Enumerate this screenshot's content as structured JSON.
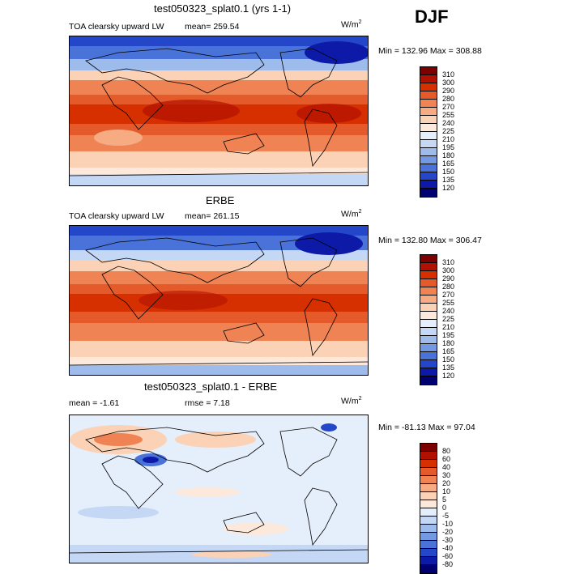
{
  "season": "DJF",
  "colors": {
    "abs_scale": [
      "#7d0000",
      "#b21000",
      "#d73000",
      "#e55a2b",
      "#ef8353",
      "#f6ab82",
      "#fbd2b6",
      "#fde9dc",
      "#e5eefb",
      "#c4d7f4",
      "#9dbcec",
      "#7399e2",
      "#4a73da",
      "#2447c9",
      "#0d1aa8",
      "#000070"
    ],
    "diff_scale": [
      "#7d0000",
      "#b21000",
      "#d73000",
      "#e55a2b",
      "#ef8353",
      "#f6ab82",
      "#fbd2b6",
      "#fde9dc",
      "#e5eefb",
      "#c4d7f4",
      "#9dbcec",
      "#7399e2",
      "#4a73da",
      "#2447c9",
      "#0d1aa8",
      "#000070"
    ]
  },
  "panels": [
    {
      "title": "test050323_splat0.1 (yrs 1-1)",
      "field_label": "TOA clearsky upward LW",
      "stat_text": "mean= 259.54",
      "units": "W/m",
      "units_sup": "2",
      "minmax": "Min = 132.96 Max = 308.88",
      "scale_labels": [
        "310",
        "300",
        "290",
        "280",
        "270",
        "255",
        "240",
        "225",
        "210",
        "195",
        "180",
        "165",
        "150",
        "135",
        "120"
      ]
    },
    {
      "title": "ERBE",
      "field_label": "TOA clearsky upward LW",
      "stat_text": "mean= 261.15",
      "units": "W/m",
      "units_sup": "2",
      "minmax": "Min = 132.80 Max = 306.47",
      "scale_labels": [
        "310",
        "300",
        "290",
        "280",
        "270",
        "255",
        "240",
        "225",
        "210",
        "195",
        "180",
        "165",
        "150",
        "135",
        "120"
      ]
    },
    {
      "title": "test050323_splat0.1 - ERBE",
      "field_label": "mean =  -1.61",
      "stat_text": "rmse =   7.18",
      "units": "W/m",
      "units_sup": "2",
      "minmax": "Min = -81.13 Max =  97.04",
      "scale_labels": [
        "80",
        "60",
        "40",
        "30",
        "20",
        "10",
        "5",
        "0",
        "-5",
        "-10",
        "-20",
        "-30",
        "-40",
        "-60",
        "-80"
      ]
    }
  ]
}
